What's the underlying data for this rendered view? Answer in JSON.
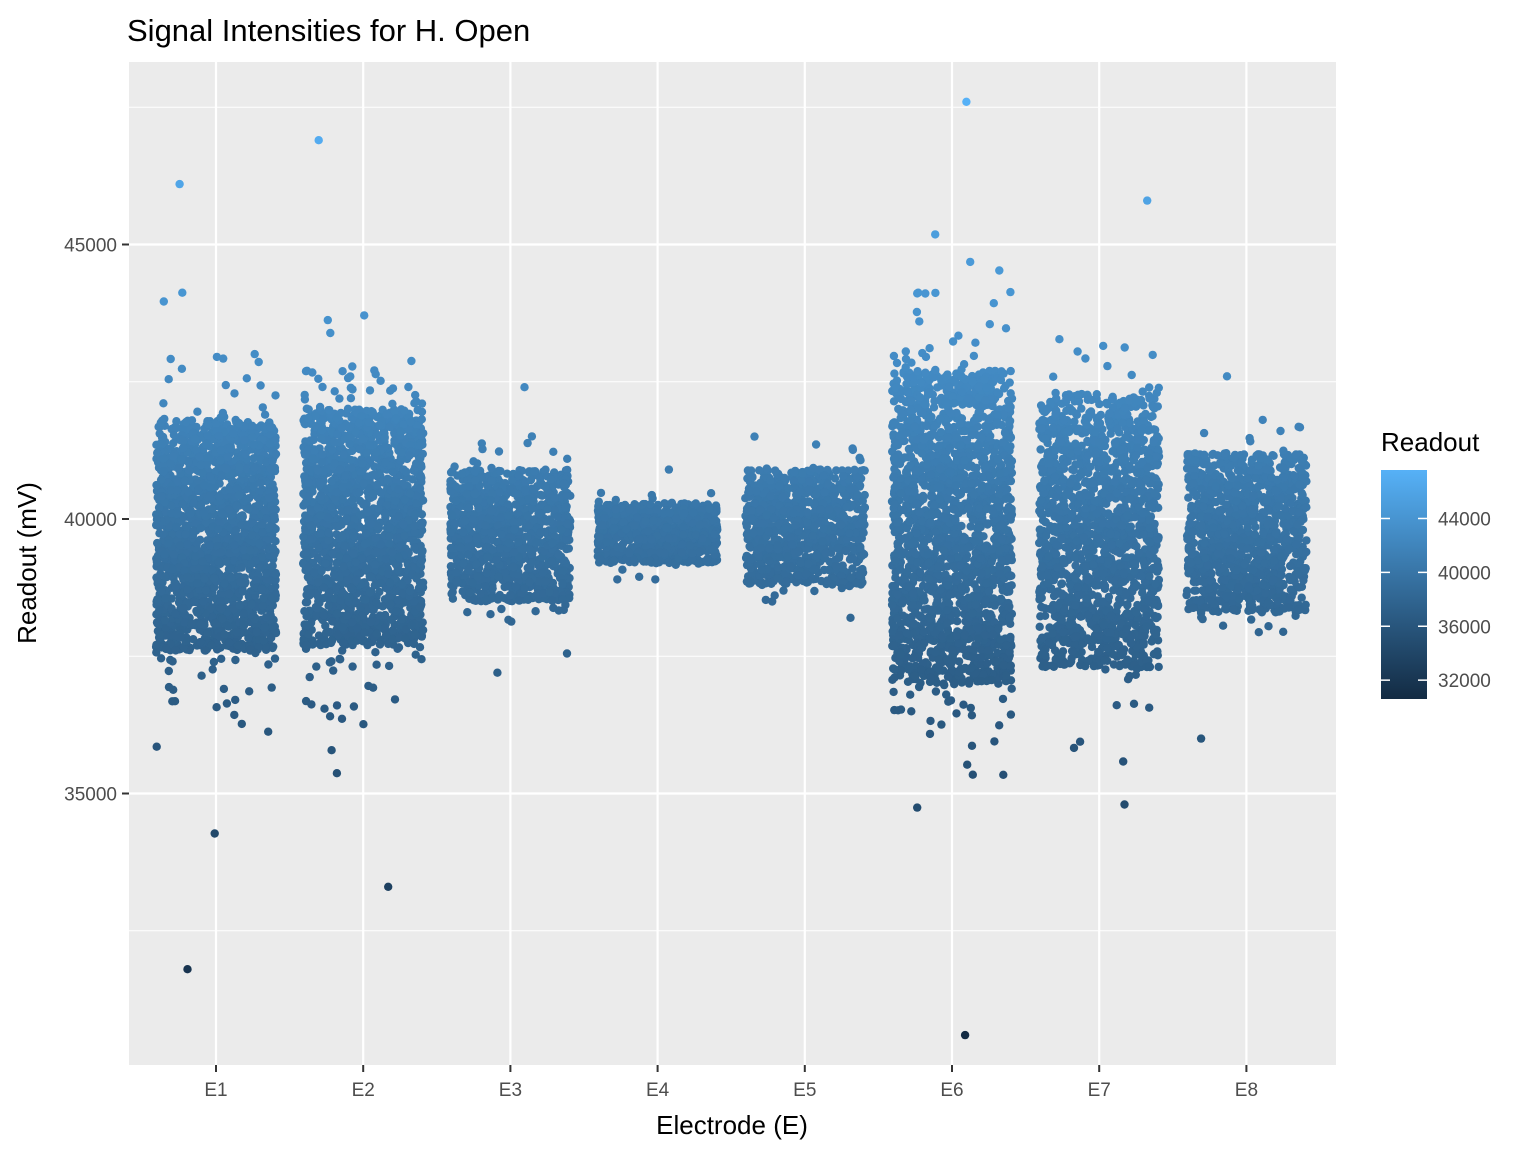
{
  "chart_data": {
    "type": "scatter",
    "title": "Signal Intensities for H. Open",
    "xlabel": "Electrode (E)",
    "ylabel": "Readout (mV)",
    "categories": [
      "E1",
      "E2",
      "E3",
      "E4",
      "E5",
      "E6",
      "E7",
      "E8"
    ],
    "y_ticks": [
      35000,
      40000,
      45000
    ],
    "y_tick_labels": [
      "35000",
      "40000",
      "45000"
    ],
    "ylim": [
      29600,
      48300
    ],
    "grid": true,
    "legend": {
      "title": "Readout",
      "placement": "right",
      "ticks": [
        32000,
        36000,
        40000,
        44000
      ],
      "tick_labels": [
        "32000",
        "36000",
        "40000",
        "44000"
      ],
      "range": [
        30600,
        47600
      ],
      "color_low": "#132b43",
      "color_high": "#56b1f7"
    },
    "series": [
      {
        "category": "E1",
        "n": 1400,
        "core_min": 37600,
        "core_max": 41800,
        "min": 31800,
        "max": 46100,
        "sd": 1350
      },
      {
        "category": "E2",
        "n": 1400,
        "core_min": 37700,
        "core_max": 42000,
        "min": 33300,
        "max": 46900,
        "sd": 1350
      },
      {
        "category": "E3",
        "n": 800,
        "core_min": 38500,
        "core_max": 40900,
        "min": 37200,
        "max": 42400,
        "sd": 700
      },
      {
        "category": "E4",
        "n": 600,
        "core_min": 39200,
        "core_max": 40300,
        "min": 38900,
        "max": 40900,
        "sd": 320
      },
      {
        "category": "E5",
        "n": 700,
        "core_min": 38800,
        "core_max": 40900,
        "min": 38200,
        "max": 41500,
        "sd": 550
      },
      {
        "category": "E6",
        "n": 1500,
        "core_min": 37000,
        "core_max": 42700,
        "min": 30600,
        "max": 47600,
        "sd": 1700
      },
      {
        "category": "E7",
        "n": 1200,
        "core_min": 37300,
        "core_max": 42300,
        "min": 34800,
        "max": 45800,
        "sd": 1350
      },
      {
        "category": "E8",
        "n": 900,
        "core_min": 38300,
        "core_max": 41200,
        "min": 36000,
        "max": 42600,
        "sd": 750
      }
    ]
  },
  "colors": {
    "panel_background": "#ebebeb",
    "grid_line": "#ffffff"
  }
}
